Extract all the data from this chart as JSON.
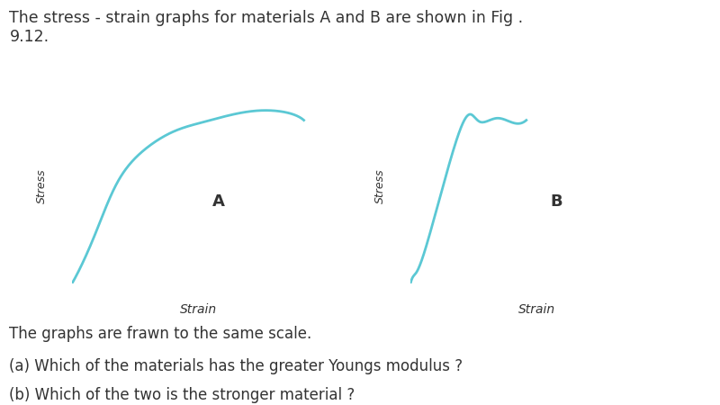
{
  "title_text": "The stress - strain graphs for materials A and B are shown in Fig .\n9.12.",
  "footer_lines": [
    "The graphs are frawn to the same scale.",
    "(a) Which of the materials has the greater Youngs modulus ?",
    "(b) Which of the two is the stronger material ?"
  ],
  "label_A": "A",
  "label_B": "B",
  "ylabel": "Stress",
  "xlabel": "Strain",
  "curve_color": "#5BC8D4",
  "curve_linewidth": 2.0,
  "axes_color": "#444444",
  "background_color": "#ffffff",
  "text_color": "#333333",
  "title_fontsize": 12.5,
  "footer_fontsize": 12,
  "label_fontsize": 13,
  "stress_fontsize": 9,
  "strain_fontsize": 10
}
